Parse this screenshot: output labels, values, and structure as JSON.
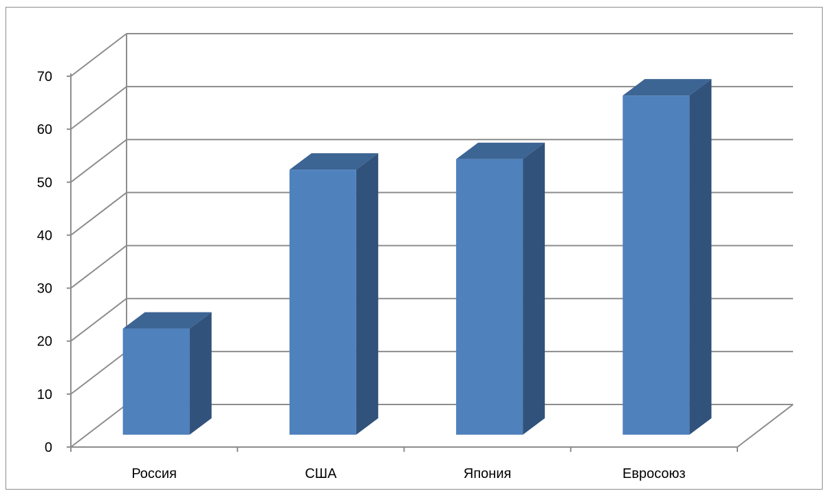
{
  "chart_data": {
    "type": "bar",
    "three_d": true,
    "categories": [
      "Россия",
      "США",
      "Япония",
      "Евросоюз"
    ],
    "values": [
      23,
      53,
      55,
      67
    ],
    "title": "",
    "xlabel": "",
    "ylabel": "",
    "ylim": [
      0,
      70
    ],
    "yticks": [
      "0",
      "10",
      "20",
      "30",
      "40",
      "50",
      "60",
      "70"
    ],
    "grid": true,
    "legend": "none",
    "colors": {
      "bar_front": "#4f81bd",
      "bar_side": "#31527a",
      "bar_top": "#3d6594",
      "grid": "#8c8c8c"
    }
  }
}
